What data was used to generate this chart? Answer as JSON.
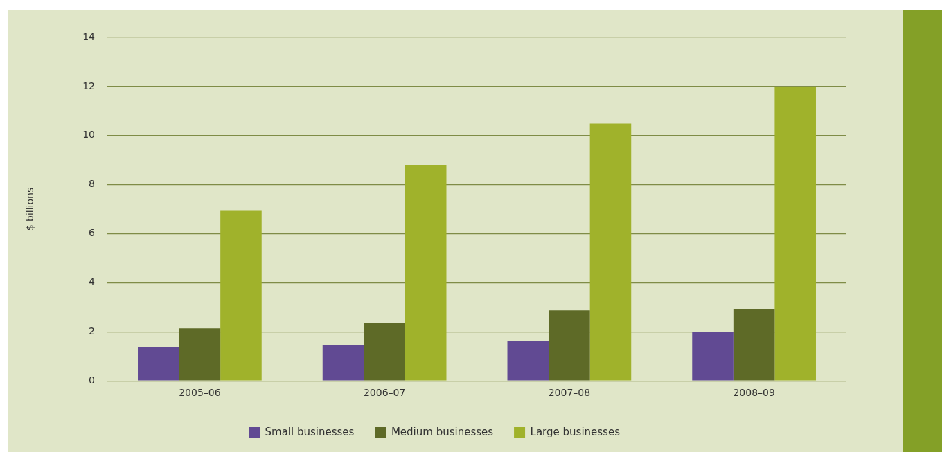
{
  "chart_data": {
    "type": "bar",
    "ylabel": "$ billions",
    "categories": [
      "2005–06",
      "2006–07",
      "2007–08",
      "2008–09"
    ],
    "series": [
      {
        "name": "Small businesses",
        "color": "#614a93",
        "values": [
          1.36,
          1.45,
          1.63,
          2.0
        ]
      },
      {
        "name": "Medium businesses",
        "color": "#5e6a27",
        "values": [
          2.14,
          2.37,
          2.88,
          2.92
        ]
      },
      {
        "name": "Large businesses",
        "color": "#a0b22b",
        "values": [
          6.93,
          8.81,
          10.49,
          12.0
        ]
      }
    ],
    "ylim": [
      0,
      14
    ],
    "yticks": [
      0,
      2,
      4,
      6,
      8,
      10,
      12,
      14
    ],
    "grid": "y",
    "legend": "bottom"
  }
}
